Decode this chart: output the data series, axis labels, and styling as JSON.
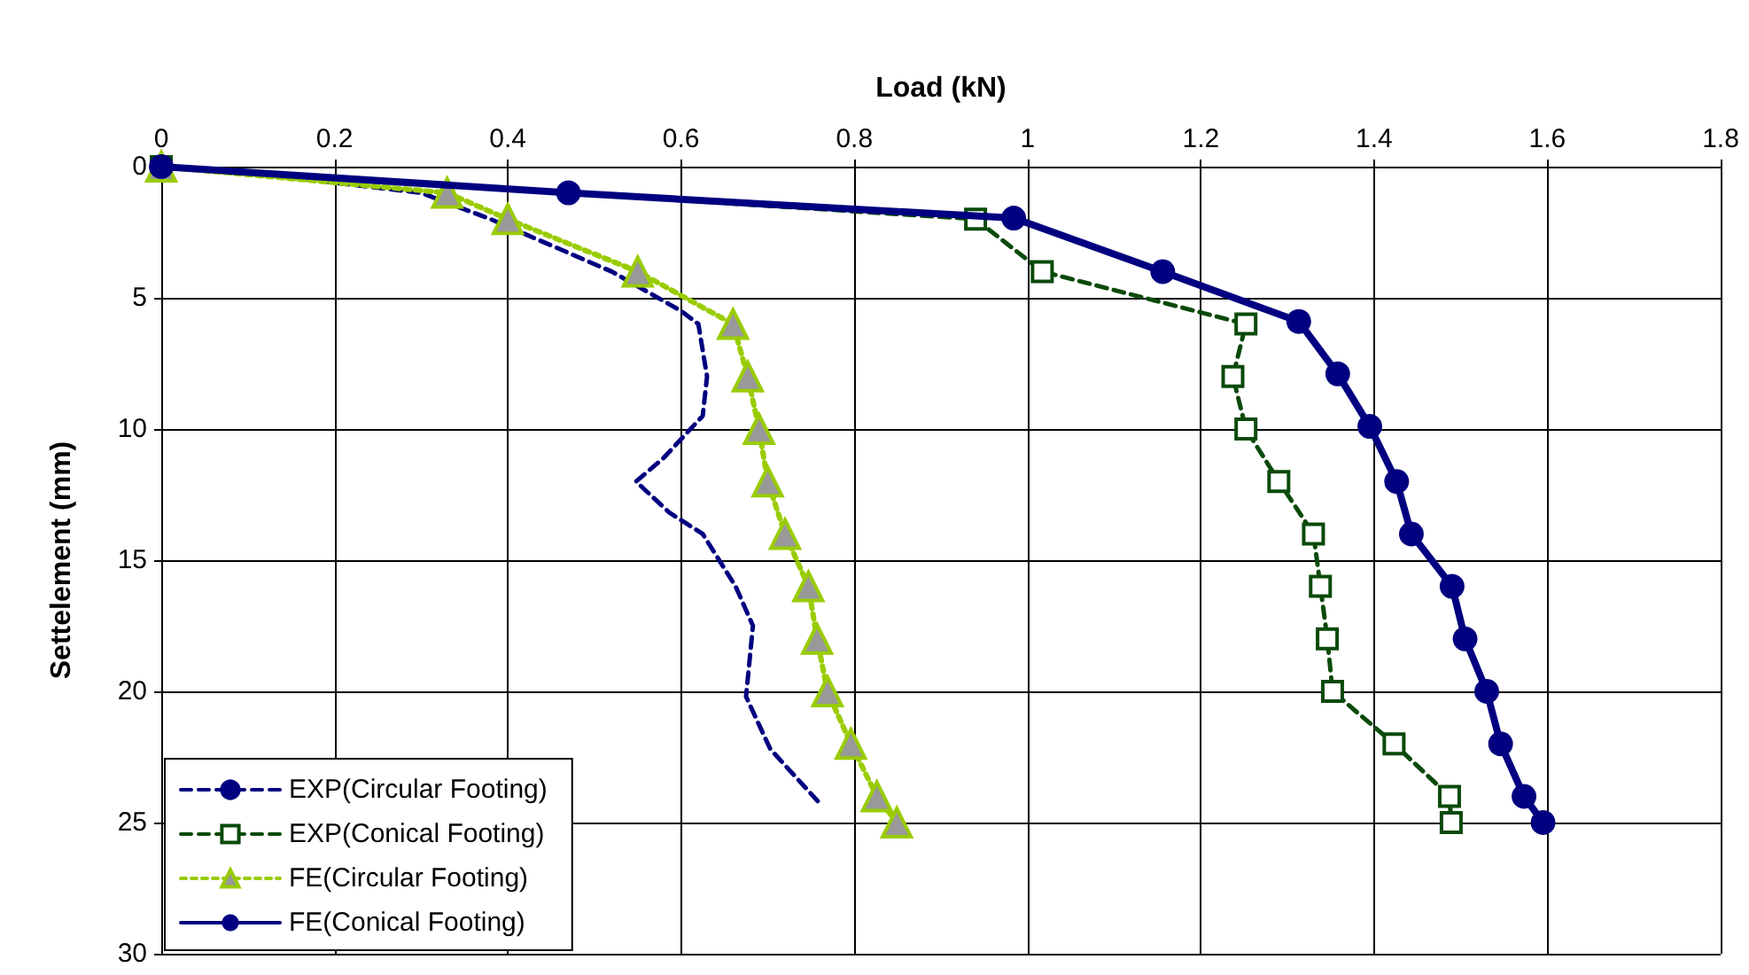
{
  "chart_data": {
    "type": "line",
    "xlabel": "Load (kN)",
    "ylabel": "Settelement (mm)",
    "xlim": [
      0,
      1.8
    ],
    "xticks": [
      0,
      0.2,
      0.4,
      0.6,
      0.8,
      1,
      1.2,
      1.4,
      1.6,
      1.8
    ],
    "ylim": [
      30,
      0
    ],
    "yticks": [
      0,
      5,
      10,
      15,
      20,
      25,
      30
    ],
    "grid": true,
    "legend": "bottom left",
    "series": [
      {
        "name": "EXP(Circular Footing)",
        "color": "#000080",
        "marker": "none",
        "line_style": "dashed",
        "x": [
          0,
          0.12,
          0.3,
          0.38,
          0.52,
          0.6,
          0.62,
          0.63,
          0.625,
          0.58,
          0.548,
          0.587,
          0.625,
          0.663,
          0.683,
          0.675,
          0.703,
          0.761
        ],
        "values": [
          0,
          0.3,
          1,
          2,
          4,
          5.5,
          6,
          8,
          9.5,
          11.1,
          12,
          13.2,
          14,
          16,
          17.5,
          20.2,
          22.2,
          24.3
        ]
      },
      {
        "name": "EXP(Conical Footing)",
        "color": "#0a4a0a",
        "marker": "square",
        "line_style": "dashed",
        "x": [
          0,
          0.94,
          1.017,
          1.252,
          1.237,
          1.252,
          1.29,
          1.33,
          1.338,
          1.346,
          1.352,
          1.423,
          1.487,
          1.489
        ],
        "values": [
          0,
          2,
          4,
          6,
          8,
          10,
          12,
          14,
          16,
          18,
          20,
          22,
          24,
          25
        ]
      },
      {
        "name": "FE(Circular Footing)",
        "color": "#99cc00",
        "marker": "triangle",
        "line_style": "dotted",
        "x": [
          0,
          0.33,
          0.4,
          0.55,
          0.66,
          0.677,
          0.69,
          0.7,
          0.72,
          0.747,
          0.757,
          0.769,
          0.796,
          0.826,
          0.849
        ],
        "values": [
          0,
          1,
          2,
          4,
          6,
          8,
          10,
          12,
          14,
          16,
          18,
          20,
          22,
          24,
          25
        ]
      },
      {
        "name": "FE(Conical Footing)",
        "color": "#000080",
        "marker": "circle",
        "line_style": "solid",
        "x": [
          0,
          0.47,
          0.984,
          1.156,
          1.313,
          1.358,
          1.395,
          1.426,
          1.443,
          1.49,
          1.505,
          1.53,
          1.546,
          1.573,
          1.595
        ],
        "values": [
          0,
          1,
          1.96,
          4,
          5.9,
          7.9,
          9.9,
          12,
          14,
          16,
          18,
          20,
          22,
          24,
          25
        ]
      }
    ]
  }
}
